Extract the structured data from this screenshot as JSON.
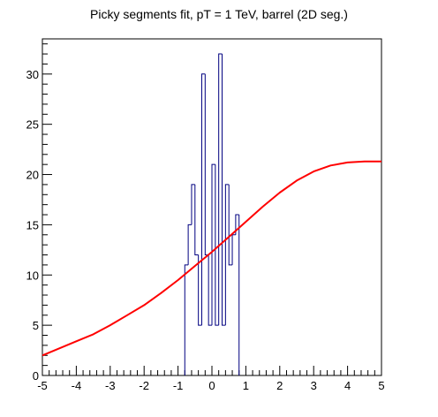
{
  "chart_data": {
    "type": "histogram",
    "title": "Picky segments fit, pT = 1 TeV, barrel (2D seg.)",
    "xlabel": "",
    "ylabel": "",
    "xlim": [
      -5,
      5
    ],
    "ylim": [
      0,
      33.5
    ],
    "grid": false,
    "legend": "none",
    "x_ticks": [
      -5,
      -4,
      -3,
      -2,
      -1,
      0,
      1,
      2,
      3,
      4,
      5
    ],
    "y_ticks": [
      0,
      5,
      10,
      15,
      20,
      25,
      30
    ],
    "histogram": {
      "name": "",
      "color": "#000080",
      "bin_edges": [
        -0.8,
        -0.7,
        -0.6,
        -0.5,
        -0.4,
        -0.3,
        -0.2,
        -0.1,
        0.0,
        0.1,
        0.2,
        0.3,
        0.4,
        0.5,
        0.6,
        0.7,
        0.8
      ],
      "counts": [
        11,
        15,
        19,
        12,
        5,
        30,
        12,
        5,
        21,
        5,
        32,
        5,
        19,
        11,
        14,
        16
      ]
    },
    "fit_curve": {
      "name": "",
      "color": "#ff0000",
      "x": [
        -5.0,
        -4.5,
        -4.0,
        -3.5,
        -3.0,
        -2.5,
        -2.0,
        -1.5,
        -1.0,
        -0.5,
        0.0,
        0.5,
        1.0,
        1.5,
        2.0,
        2.5,
        3.0,
        3.5,
        4.0,
        4.5,
        5.0
      ],
      "y": [
        2.0,
        2.7,
        3.4,
        4.1,
        5.0,
        6.0,
        7.0,
        8.2,
        9.5,
        10.9,
        12.3,
        13.8,
        15.3,
        16.8,
        18.2,
        19.4,
        20.3,
        20.9,
        21.2,
        21.3,
        21.3
      ]
    }
  }
}
